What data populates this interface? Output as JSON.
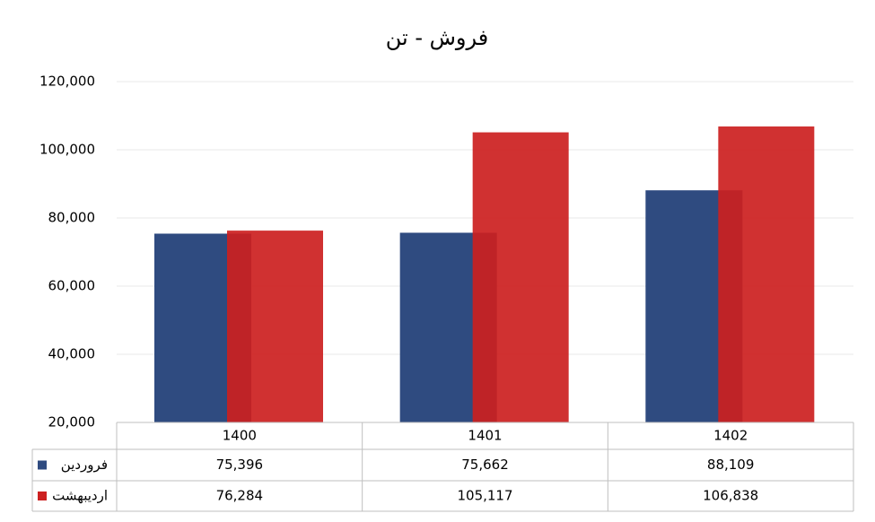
{
  "chart_data": {
    "type": "bar",
    "title": "فروش - تن",
    "categories": [
      "1400",
      "1401",
      "1402"
    ],
    "series": [
      {
        "name": "فروردین",
        "color": "#2f4b80",
        "values": [
          75396,
          75662,
          88109
        ],
        "value_labels": [
          "75,396",
          "75,662",
          "88,109"
        ]
      },
      {
        "name": "اردیبهشت",
        "color": "#cc2020",
        "values": [
          76284,
          105117,
          106838
        ],
        "value_labels": [
          "76,284",
          "105,117",
          "106,838"
        ]
      }
    ],
    "ylim": [
      20000,
      120000
    ],
    "yticks": [
      {
        "value": 20000,
        "label": "20,000"
      },
      {
        "value": 40000,
        "label": "40,000"
      },
      {
        "value": 60000,
        "label": "60,000"
      },
      {
        "value": 80000,
        "label": "80,000"
      },
      {
        "value": 100000,
        "label": "100,000"
      },
      {
        "value": 120000,
        "label": "120,000"
      }
    ],
    "grid": true
  }
}
